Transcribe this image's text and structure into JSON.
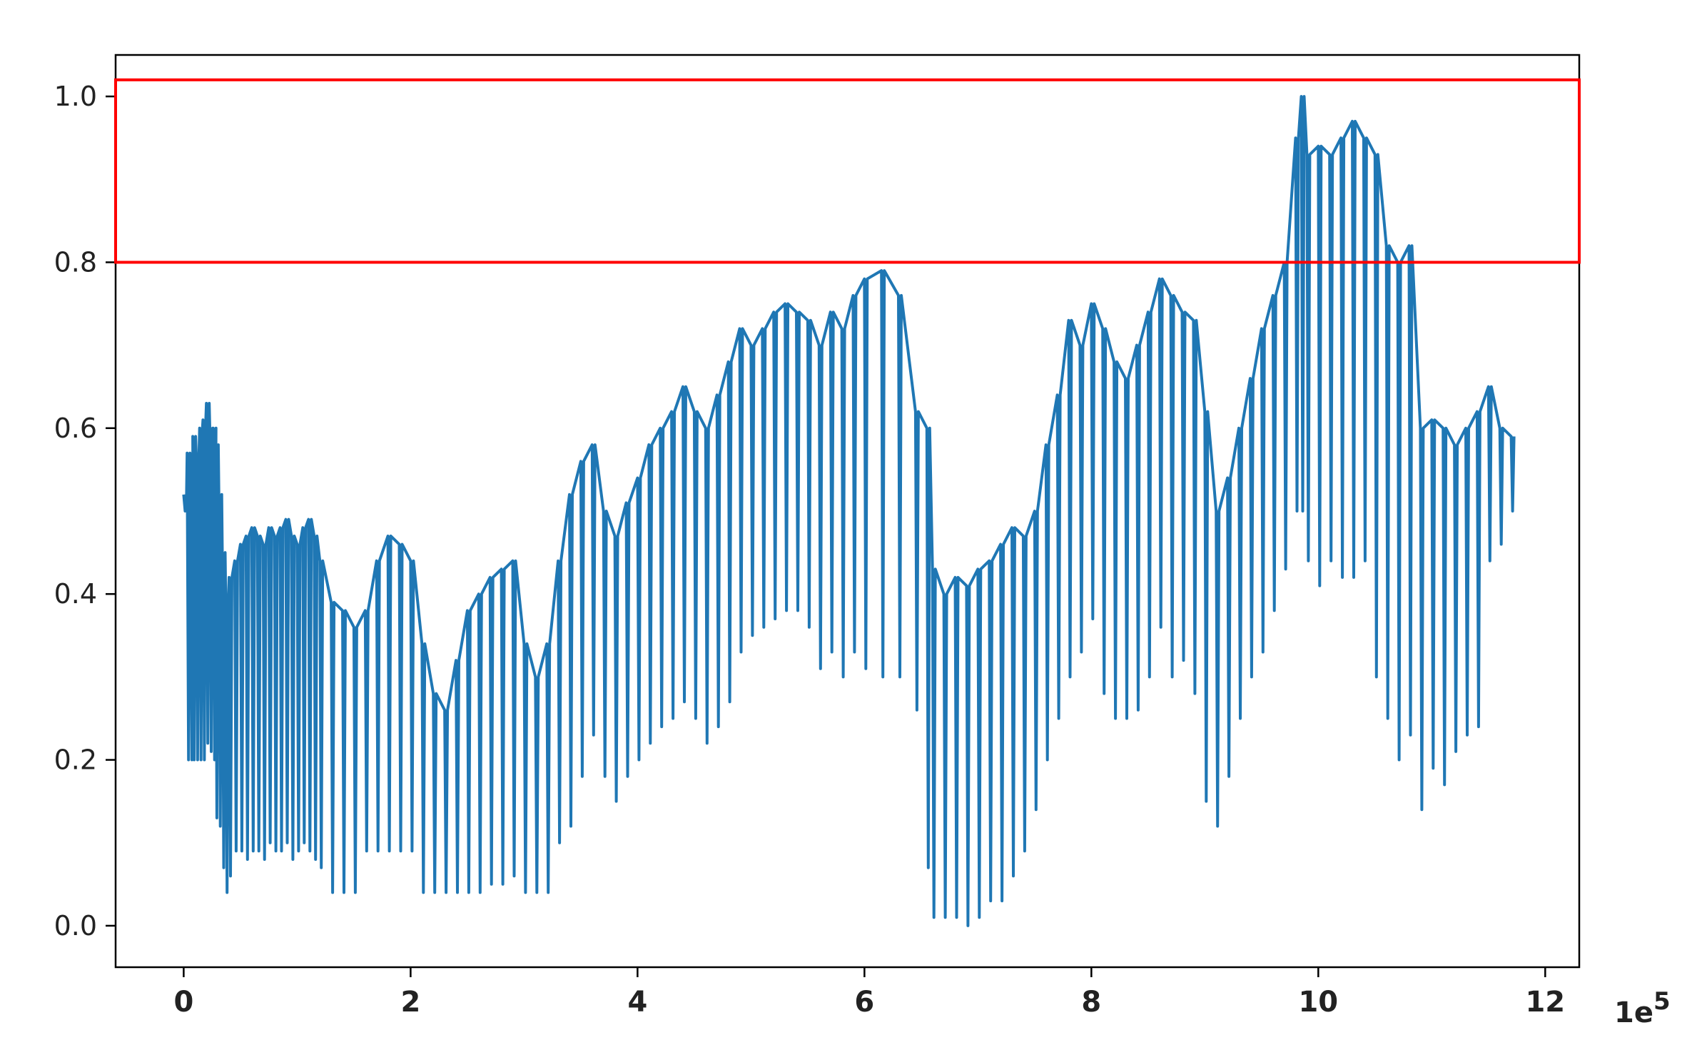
{
  "chart_data": {
    "type": "line",
    "title": "",
    "xlabel": "",
    "ylabel": "",
    "x_offset_text": "1e",
    "x_offset_exp": "5",
    "xlim": [
      -0.6,
      12.3
    ],
    "ylim": [
      -0.05,
      1.05
    ],
    "xticks": [
      0,
      2,
      4,
      6,
      8,
      10,
      12
    ],
    "xtick_labels": [
      "0",
      "2",
      "4",
      "6",
      "8",
      "10",
      "12"
    ],
    "yticks": [
      0.0,
      0.2,
      0.4,
      0.6,
      0.8,
      1.0
    ],
    "ytick_labels": [
      "0.0",
      "0.2",
      "0.4",
      "0.6",
      "0.8",
      "1.0"
    ],
    "grid": false,
    "colors": {
      "line": "#1f77b4",
      "highlight": "#ff0000",
      "axes": "#000000"
    },
    "series": [
      {
        "x": [
          0.0,
          0.03,
          0.06,
          0.08,
          0.11,
          0.14,
          0.17,
          0.2,
          0.23,
          0.26,
          0.28,
          0.31,
          0.34,
          0.37,
          0.4,
          0.45,
          0.5,
          0.55,
          0.6,
          0.65,
          0.7,
          0.75,
          0.8,
          0.85,
          0.9,
          0.95,
          1.0,
          1.05,
          1.1,
          1.15,
          1.2,
          1.3,
          1.4,
          1.5,
          1.6,
          1.7,
          1.8,
          1.9,
          2.0,
          2.1,
          2.2,
          2.3,
          2.4,
          2.5,
          2.6,
          2.7,
          2.8,
          2.9,
          3.0,
          3.1,
          3.2,
          3.3,
          3.4,
          3.5,
          3.6,
          3.7,
          3.8,
          3.9,
          4.0,
          4.1,
          4.2,
          4.3,
          4.4,
          4.5,
          4.6,
          4.7,
          4.8,
          4.9,
          5.0,
          5.1,
          5.2,
          5.3,
          5.4,
          5.5,
          5.6,
          5.7,
          5.8,
          5.9,
          6.0,
          6.15,
          6.3,
          6.45,
          6.55,
          6.6,
          6.7,
          6.8,
          6.9,
          7.0,
          7.1,
          7.2,
          7.3,
          7.4,
          7.5,
          7.6,
          7.7,
          7.8,
          7.9,
          8.0,
          8.1,
          8.2,
          8.3,
          8.4,
          8.5,
          8.6,
          8.7,
          8.8,
          8.9,
          9.0,
          9.1,
          9.2,
          9.3,
          9.4,
          9.5,
          9.6,
          9.7,
          9.8,
          9.85,
          9.9,
          10.0,
          10.1,
          10.2,
          10.3,
          10.4,
          10.5,
          10.6,
          10.7,
          10.8,
          10.9,
          11.0,
          11.1,
          11.2,
          11.3,
          11.4,
          11.5,
          11.6,
          11.7
        ],
        "y": [
          0.52,
          0.57,
          0.55,
          0.59,
          0.57,
          0.6,
          0.61,
          0.63,
          0.6,
          0.6,
          0.58,
          0.52,
          0.45,
          0.4,
          0.42,
          0.44,
          0.46,
          0.47,
          0.48,
          0.47,
          0.46,
          0.48,
          0.47,
          0.48,
          0.49,
          0.47,
          0.46,
          0.48,
          0.49,
          0.47,
          0.44,
          0.39,
          0.38,
          0.36,
          0.38,
          0.44,
          0.47,
          0.46,
          0.44,
          0.34,
          0.28,
          0.26,
          0.32,
          0.38,
          0.4,
          0.42,
          0.43,
          0.44,
          0.34,
          0.3,
          0.34,
          0.44,
          0.52,
          0.56,
          0.58,
          0.5,
          0.47,
          0.51,
          0.54,
          0.58,
          0.6,
          0.62,
          0.65,
          0.62,
          0.6,
          0.64,
          0.68,
          0.72,
          0.7,
          0.72,
          0.74,
          0.75,
          0.74,
          0.73,
          0.7,
          0.74,
          0.72,
          0.76,
          0.78,
          0.79,
          0.76,
          0.62,
          0.6,
          0.43,
          0.4,
          0.42,
          0.41,
          0.43,
          0.44,
          0.46,
          0.48,
          0.47,
          0.5,
          0.58,
          0.64,
          0.73,
          0.7,
          0.75,
          0.72,
          0.68,
          0.66,
          0.7,
          0.74,
          0.78,
          0.76,
          0.74,
          0.73,
          0.62,
          0.5,
          0.54,
          0.6,
          0.66,
          0.72,
          0.76,
          0.8,
          0.95,
          1.0,
          0.93,
          0.94,
          0.93,
          0.95,
          0.97,
          0.95,
          0.93,
          0.82,
          0.8,
          0.82,
          0.6,
          0.61,
          0.6,
          0.58,
          0.6,
          0.62,
          0.65,
          0.6,
          0.59
        ],
        "y_min": [
          0.5,
          0.2,
          0.2,
          0.2,
          0.2,
          0.2,
          0.2,
          0.22,
          0.21,
          0.2,
          0.13,
          0.12,
          0.07,
          0.04,
          0.06,
          0.09,
          0.09,
          0.08,
          0.09,
          0.09,
          0.08,
          0.1,
          0.09,
          0.09,
          0.1,
          0.08,
          0.09,
          0.1,
          0.09,
          0.08,
          0.07,
          0.04,
          0.04,
          0.04,
          0.09,
          0.09,
          0.09,
          0.09,
          0.09,
          0.04,
          0.04,
          0.04,
          0.04,
          0.04,
          0.04,
          0.05,
          0.05,
          0.06,
          0.04,
          0.04,
          0.04,
          0.1,
          0.12,
          0.18,
          0.23,
          0.18,
          0.15,
          0.18,
          0.2,
          0.22,
          0.24,
          0.25,
          0.27,
          0.25,
          0.22,
          0.24,
          0.27,
          0.33,
          0.35,
          0.36,
          0.37,
          0.38,
          0.38,
          0.36,
          0.31,
          0.33,
          0.3,
          0.33,
          0.31,
          0.3,
          0.3,
          0.26,
          0.07,
          0.01,
          0.01,
          0.01,
          0.0,
          0.01,
          0.03,
          0.03,
          0.06,
          0.09,
          0.14,
          0.2,
          0.25,
          0.3,
          0.33,
          0.37,
          0.28,
          0.25,
          0.25,
          0.26,
          0.3,
          0.36,
          0.3,
          0.32,
          0.28,
          0.15,
          0.12,
          0.18,
          0.25,
          0.3,
          0.33,
          0.38,
          0.43,
          0.5,
          0.5,
          0.44,
          0.41,
          0.44,
          0.42,
          0.42,
          0.44,
          0.3,
          0.25,
          0.2,
          0.23,
          0.14,
          0.19,
          0.17,
          0.21,
          0.23,
          0.24,
          0.44,
          0.46,
          0.5
        ]
      }
    ],
    "highlight_region": {
      "ymin": 0.8,
      "ymax": 1.02
    }
  }
}
